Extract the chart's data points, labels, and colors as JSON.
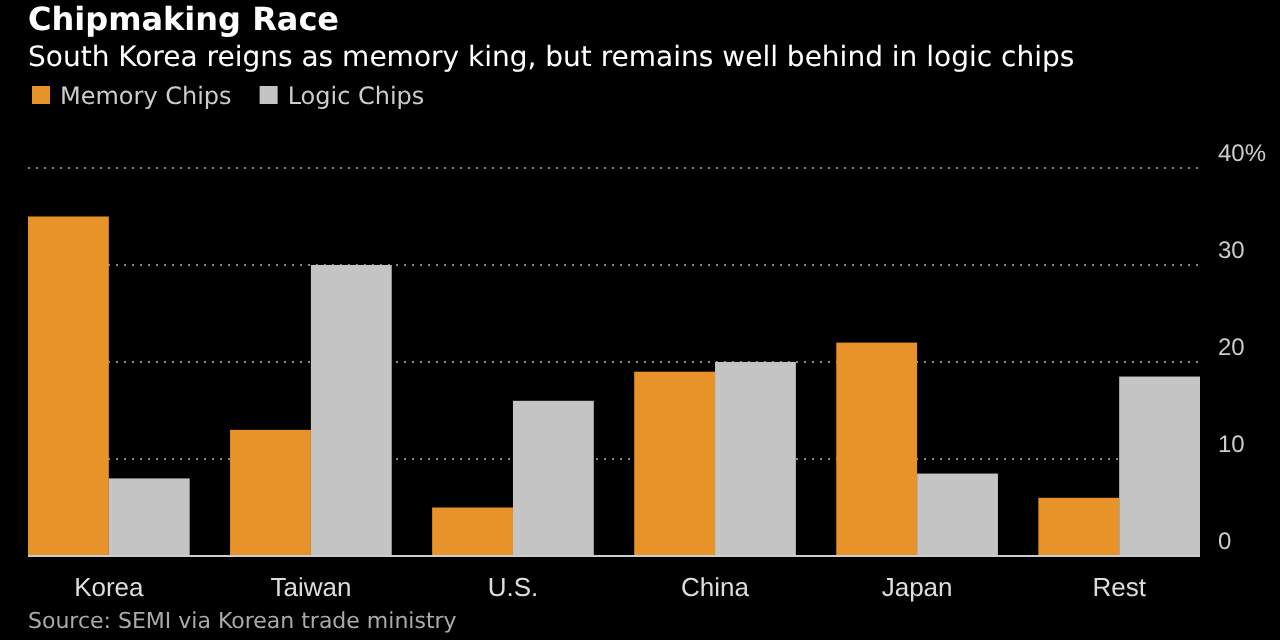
{
  "chart_data": {
    "type": "bar",
    "title": "Chipmaking Race",
    "subtitle": "South Korea reigns as memory king, but remains well behind in logic chips",
    "categories": [
      "Korea",
      "Taiwan",
      "U.S.",
      "China",
      "Japan",
      "Rest"
    ],
    "series": [
      {
        "name": "Memory Chips",
        "color": "#e8922a",
        "values": [
          35,
          13,
          5,
          19,
          22,
          6
        ]
      },
      {
        "name": "Logic Chips",
        "color": "#c4c4c4",
        "values": [
          8,
          30,
          16,
          20,
          8.5,
          18.5
        ]
      }
    ],
    "ylim": [
      0,
      40
    ],
    "yticks": [
      0,
      10,
      20,
      30,
      {
        "value": 40,
        "label": "40%"
      }
    ],
    "grid": "y",
    "legend": "top left",
    "annotations": [
      "Source: SEMI via Korean trade ministry"
    ]
  }
}
